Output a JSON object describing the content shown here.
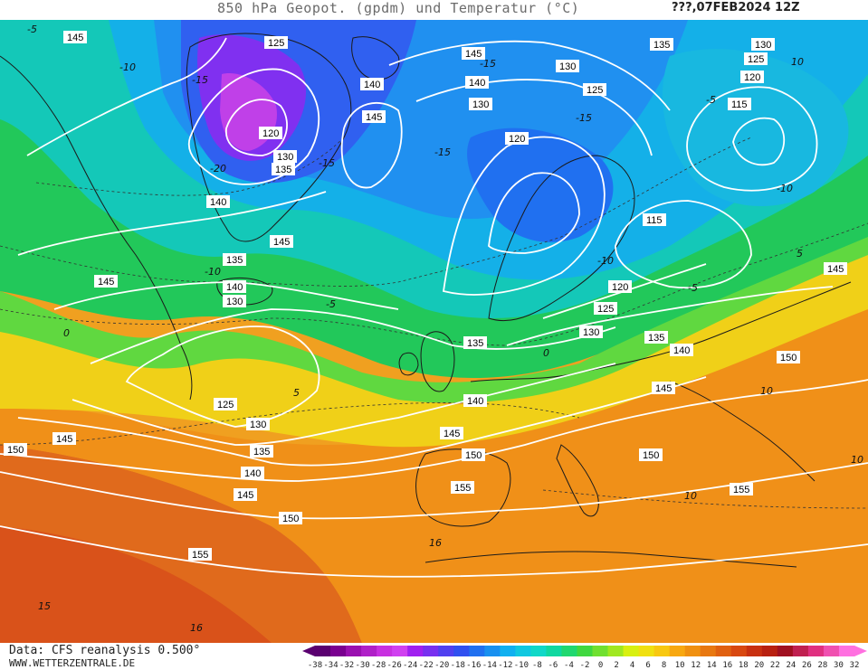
{
  "header": {
    "title": "850 hPa Geopot. (gpdm) und Temperatur (°C)",
    "datestamp": "???,07FEB2024 12Z"
  },
  "footer": {
    "source": "Data: CFS reanalysis 0.500°",
    "site": "WWW.WETTERZENTRALE.DE"
  },
  "legend": {
    "unit": "°C",
    "ticks": [
      "-38",
      "-34",
      "-32",
      "-30",
      "-28",
      "-26",
      "-24",
      "-22",
      "-20",
      "-18",
      "-16",
      "-14",
      "-12",
      "-10",
      "-8",
      "-6",
      "-4",
      "-2",
      "0",
      "2",
      "4",
      "6",
      "8",
      "10",
      "12",
      "14",
      "16",
      "18",
      "20",
      "22",
      "24",
      "26",
      "28",
      "30",
      "32"
    ],
    "colors": [
      "#5a0070",
      "#7a0090",
      "#9a10b0",
      "#b020c8",
      "#c830e0",
      "#d040f0",
      "#a020f0",
      "#7830f0",
      "#5040f0",
      "#3050f0",
      "#2070f0",
      "#1890f0",
      "#10b0f0",
      "#10c8e0",
      "#10d8c8",
      "#10d8a0",
      "#20d870",
      "#40d840",
      "#70e030",
      "#a0e820",
      "#d8f010",
      "#f0e010",
      "#f8c810",
      "#f8a810",
      "#f09010",
      "#e87810",
      "#e06010",
      "#d84810",
      "#c83010",
      "#b82010",
      "#a01020",
      "#c02050",
      "#e03080",
      "#f050b0",
      "#ff70e0"
    ]
  },
  "map": {
    "geopotential_labels": [
      "145",
      "125",
      "140",
      "135",
      "130",
      "125",
      "130",
      "115",
      "120",
      "130",
      "120",
      "140",
      "145",
      "135",
      "130",
      "125",
      "120",
      "145",
      "140",
      "135",
      "140",
      "135",
      "130",
      "145",
      "115",
      "120",
      "125",
      "130",
      "135",
      "140",
      "150",
      "125",
      "130",
      "135",
      "140",
      "145",
      "150",
      "155",
      "145",
      "140",
      "130",
      "155",
      "150",
      "155",
      "150",
      "145",
      "150"
    ],
    "temperature_labels": [
      "-5",
      "-10",
      "-15",
      "-20",
      "-15",
      "-10",
      "-5",
      "0",
      "5",
      "10",
      "-15",
      "-10",
      "-5",
      "0",
      "5",
      "10",
      "15",
      "16",
      "-10",
      "-5",
      "-5",
      "5",
      "0"
    ]
  }
}
